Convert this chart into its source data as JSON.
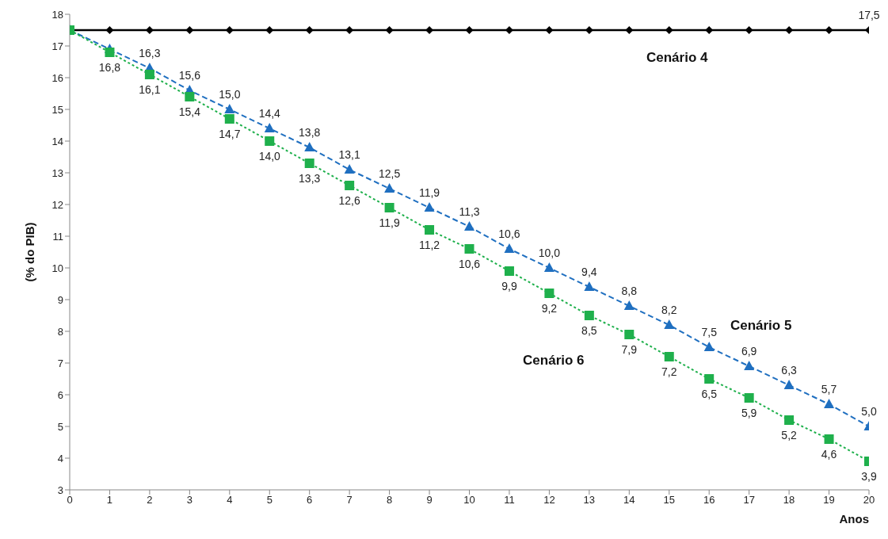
{
  "chart_data": {
    "type": "line",
    "xlabel": "Anos",
    "ylabel": "(% do PIB)",
    "x": [
      0,
      1,
      2,
      3,
      4,
      5,
      6,
      7,
      8,
      9,
      10,
      11,
      12,
      13,
      14,
      15,
      16,
      17,
      18,
      19,
      20
    ],
    "series": [
      {
        "name": "Cenário 4",
        "color": "#000000",
        "marker": "diamond",
        "line_style": "solid",
        "values": [
          17.5,
          17.5,
          17.5,
          17.5,
          17.5,
          17.5,
          17.5,
          17.5,
          17.5,
          17.5,
          17.5,
          17.5,
          17.5,
          17.5,
          17.5,
          17.5,
          17.5,
          17.5,
          17.5,
          17.5,
          17.5
        ],
        "value_labels": [
          null,
          null,
          null,
          null,
          null,
          null,
          null,
          null,
          null,
          null,
          null,
          null,
          null,
          null,
          null,
          null,
          null,
          null,
          null,
          null,
          "17,5"
        ]
      },
      {
        "name": "Cenário 5",
        "color": "#1f6fc0",
        "marker": "triangle",
        "line_style": "dashed",
        "values": [
          17.5,
          16.9,
          16.3,
          15.6,
          15.0,
          14.4,
          13.8,
          13.1,
          12.5,
          11.9,
          11.3,
          10.6,
          10.0,
          9.4,
          8.8,
          8.2,
          7.5,
          6.9,
          6.3,
          5.7,
          5.0
        ],
        "value_labels": [
          null,
          null,
          "16,3",
          "15,6",
          "15,0",
          "14,4",
          "13,8",
          "13,1",
          "12,5",
          "11,9",
          "11,3",
          "10,6",
          "10,0",
          "9,4",
          "8,8",
          "8,2",
          "7,5",
          "6,9",
          "6,3",
          "5,7",
          "5,0"
        ]
      },
      {
        "name": "Cenário 6",
        "color": "#1fb04c",
        "marker": "square",
        "line_style": "dotted",
        "values": [
          17.5,
          16.8,
          16.1,
          15.4,
          14.7,
          14.0,
          13.3,
          12.6,
          11.9,
          11.2,
          10.6,
          9.9,
          9.2,
          8.5,
          7.9,
          7.2,
          6.5,
          5.9,
          5.2,
          4.6,
          3.9
        ],
        "value_labels": [
          null,
          "16,8",
          "16,1",
          "15,4",
          "14,7",
          "14,0",
          "13,3",
          "12,6",
          "11,9",
          "11,2",
          "10,6",
          "9,9",
          "9,2",
          "8,5",
          "7,9",
          "7,2",
          "6,5",
          "5,9",
          "5,2",
          "4,6",
          "3,9"
        ]
      }
    ],
    "xlim": [
      0,
      20
    ],
    "xticks": [
      0,
      1,
      2,
      3,
      4,
      5,
      6,
      7,
      8,
      9,
      10,
      11,
      12,
      13,
      14,
      15,
      16,
      17,
      18,
      19,
      20
    ],
    "ylim": [
      3,
      18
    ],
    "yticks": [
      3,
      4,
      5,
      6,
      7,
      8,
      9,
      10,
      11,
      12,
      13,
      14,
      15,
      16,
      17,
      18
    ],
    "grid": false,
    "legend": false
  }
}
